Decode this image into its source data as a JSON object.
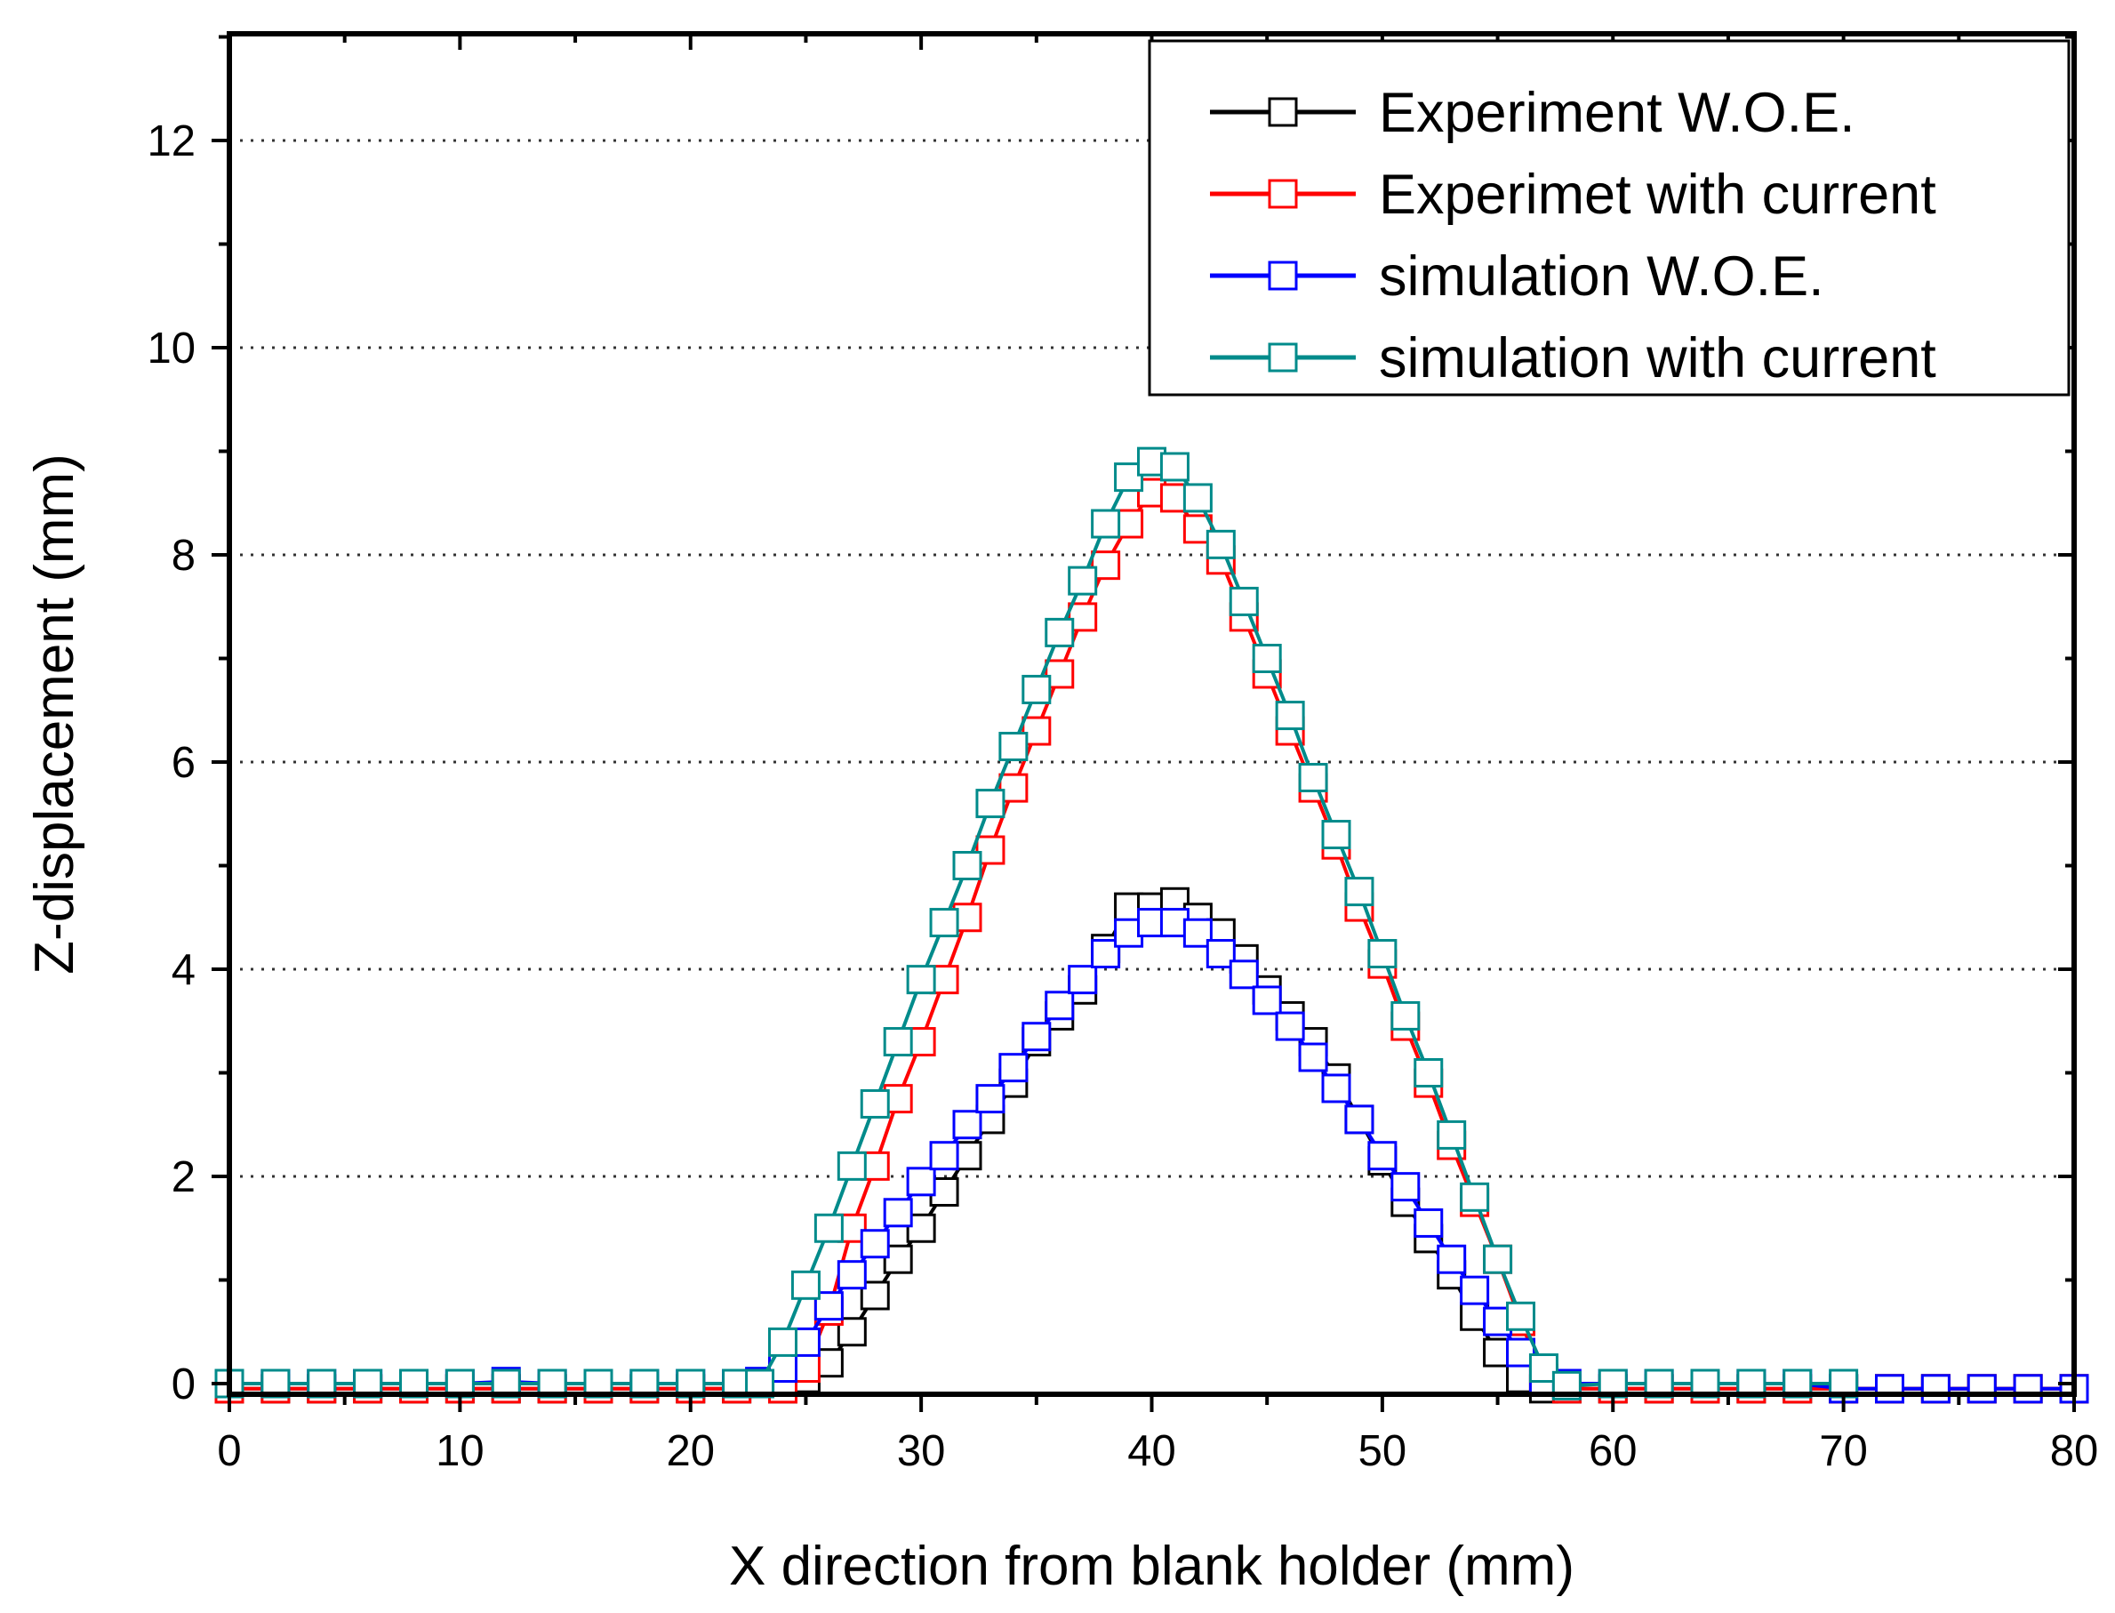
{
  "chart_data": {
    "type": "line",
    "title": "",
    "xlabel": "X direction from blank holder (mm)",
    "ylabel": "Z-displacement (mm)",
    "xlim": [
      0,
      80
    ],
    "ylim": [
      -0.1,
      13
    ],
    "x_ticks": [
      0,
      10,
      20,
      30,
      40,
      50,
      60,
      70,
      80
    ],
    "y_ticks": [
      0,
      2,
      4,
      6,
      8,
      10,
      12
    ],
    "grid": "horizontal dotted",
    "legend_position": "top-right",
    "marker": "open-square",
    "series": [
      {
        "name": "Experiment W.O.E.",
        "color": "#000000",
        "points": [
          [
            0,
            -0.05
          ],
          [
            2,
            -0.05
          ],
          [
            4,
            -0.05
          ],
          [
            6,
            -0.05
          ],
          [
            8,
            -0.05
          ],
          [
            10,
            -0.05
          ],
          [
            12,
            -0.05
          ],
          [
            14,
            -0.05
          ],
          [
            16,
            -0.05
          ],
          [
            18,
            -0.05
          ],
          [
            20,
            -0.05
          ],
          [
            22,
            -0.05
          ],
          [
            24,
            -0.05
          ],
          [
            25,
            0.05
          ],
          [
            26,
            0.2
          ],
          [
            27,
            0.5
          ],
          [
            28,
            0.85
          ],
          [
            29,
            1.2
          ],
          [
            30,
            1.5
          ],
          [
            31,
            1.85
          ],
          [
            32,
            2.2
          ],
          [
            33,
            2.55
          ],
          [
            34,
            2.9
          ],
          [
            35,
            3.3
          ],
          [
            36,
            3.55
          ],
          [
            37,
            3.8
          ],
          [
            38,
            4.2
          ],
          [
            39,
            4.6
          ],
          [
            40,
            4.6
          ],
          [
            41,
            4.65
          ],
          [
            42,
            4.5
          ],
          [
            43,
            4.35
          ],
          [
            44,
            4.1
          ],
          [
            45,
            3.8
          ],
          [
            46,
            3.55
          ],
          [
            47,
            3.3
          ],
          [
            48,
            2.95
          ],
          [
            49,
            2.55
          ],
          [
            50,
            2.15
          ],
          [
            51,
            1.75
          ],
          [
            52,
            1.4
          ],
          [
            53,
            1.05
          ],
          [
            54,
            0.65
          ],
          [
            55,
            0.3
          ],
          [
            56,
            0.05
          ],
          [
            57,
            -0.05
          ],
          [
            58,
            -0.05
          ],
          [
            60,
            -0.05
          ],
          [
            62,
            -0.05
          ],
          [
            64,
            -0.05
          ],
          [
            66,
            -0.05
          ],
          [
            68,
            -0.05
          ],
          [
            70,
            -0.05
          ],
          [
            72,
            -0.05
          ],
          [
            74,
            -0.05
          ],
          [
            76,
            -0.05
          ],
          [
            78,
            -0.05
          ],
          [
            80,
            -0.05
          ]
        ]
      },
      {
        "name": "Experimet with current",
        "color": "#ff0000",
        "points": [
          [
            0,
            -0.05
          ],
          [
            2,
            -0.05
          ],
          [
            4,
            -0.05
          ],
          [
            6,
            -0.05
          ],
          [
            8,
            -0.05
          ],
          [
            10,
            -0.05
          ],
          [
            12,
            -0.05
          ],
          [
            14,
            -0.05
          ],
          [
            16,
            -0.05
          ],
          [
            18,
            -0.05
          ],
          [
            20,
            -0.05
          ],
          [
            22,
            -0.05
          ],
          [
            24,
            -0.05
          ],
          [
            25,
            0.15
          ],
          [
            26,
            0.7
          ],
          [
            27,
            1.5
          ],
          [
            28,
            2.1
          ],
          [
            29,
            2.75
          ],
          [
            30,
            3.3
          ],
          [
            31,
            3.9
          ],
          [
            32,
            4.5
          ],
          [
            33,
            5.15
          ],
          [
            34,
            5.75
          ],
          [
            35,
            6.3
          ],
          [
            36,
            6.85
          ],
          [
            37,
            7.4
          ],
          [
            38,
            7.9
          ],
          [
            39,
            8.3
          ],
          [
            40,
            8.6
          ],
          [
            41,
            8.55
          ],
          [
            42,
            8.25
          ],
          [
            43,
            7.95
          ],
          [
            44,
            7.4
          ],
          [
            45,
            6.85
          ],
          [
            46,
            6.3
          ],
          [
            47,
            5.75
          ],
          [
            48,
            5.2
          ],
          [
            49,
            4.6
          ],
          [
            50,
            4.05
          ],
          [
            51,
            3.45
          ],
          [
            52,
            2.9
          ],
          [
            53,
            2.3
          ],
          [
            54,
            1.75
          ],
          [
            55,
            1.2
          ],
          [
            56,
            0.6
          ],
          [
            57,
            0.05
          ],
          [
            58,
            -0.05
          ],
          [
            60,
            -0.05
          ],
          [
            62,
            -0.05
          ],
          [
            64,
            -0.05
          ],
          [
            66,
            -0.05
          ],
          [
            68,
            -0.05
          ],
          [
            70,
            -0.05
          ],
          [
            72,
            -0.05
          ],
          [
            74,
            -0.05
          ],
          [
            76,
            -0.05
          ],
          [
            78,
            -0.05
          ],
          [
            80,
            -0.05
          ]
        ]
      },
      {
        "name": "simulation W.O.E.",
        "color": "#0000ff",
        "points": [
          [
            0,
            0
          ],
          [
            2,
            0
          ],
          [
            4,
            0
          ],
          [
            6,
            0
          ],
          [
            8,
            0
          ],
          [
            10,
            0
          ],
          [
            12,
            0.02
          ],
          [
            14,
            0
          ],
          [
            16,
            0
          ],
          [
            18,
            0
          ],
          [
            20,
            0
          ],
          [
            22,
            0
          ],
          [
            23,
            0.02
          ],
          [
            24,
            0.15
          ],
          [
            25,
            0.4
          ],
          [
            26,
            0.75
          ],
          [
            27,
            1.05
          ],
          [
            28,
            1.35
          ],
          [
            29,
            1.65
          ],
          [
            30,
            1.95
          ],
          [
            31,
            2.2
          ],
          [
            32,
            2.5
          ],
          [
            33,
            2.75
          ],
          [
            34,
            3.05
          ],
          [
            35,
            3.35
          ],
          [
            36,
            3.65
          ],
          [
            37,
            3.9
          ],
          [
            38,
            4.15
          ],
          [
            39,
            4.35
          ],
          [
            40,
            4.45
          ],
          [
            41,
            4.45
          ],
          [
            42,
            4.35
          ],
          [
            43,
            4.15
          ],
          [
            44,
            3.95
          ],
          [
            45,
            3.7
          ],
          [
            46,
            3.45
          ],
          [
            47,
            3.15
          ],
          [
            48,
            2.85
          ],
          [
            49,
            2.55
          ],
          [
            50,
            2.2
          ],
          [
            51,
            1.9
          ],
          [
            52,
            1.55
          ],
          [
            53,
            1.2
          ],
          [
            54,
            0.9
          ],
          [
            55,
            0.6
          ],
          [
            56,
            0.3
          ],
          [
            57,
            0.02
          ],
          [
            58,
            0
          ],
          [
            60,
            0
          ],
          [
            62,
            0
          ],
          [
            64,
            0
          ],
          [
            66,
            0
          ],
          [
            68,
            0
          ],
          [
            70,
            -0.05
          ],
          [
            72,
            -0.05
          ],
          [
            74,
            -0.05
          ],
          [
            76,
            -0.05
          ],
          [
            78,
            -0.05
          ],
          [
            80,
            -0.05
          ]
        ]
      },
      {
        "name": "simulation with current",
        "color": "#008b8b",
        "points": [
          [
            0,
            0
          ],
          [
            2,
            0
          ],
          [
            4,
            0
          ],
          [
            6,
            0
          ],
          [
            8,
            0
          ],
          [
            10,
            0
          ],
          [
            12,
            0
          ],
          [
            14,
            0
          ],
          [
            16,
            0
          ],
          [
            18,
            0
          ],
          [
            20,
            0
          ],
          [
            22,
            0
          ],
          [
            23,
            0
          ],
          [
            24,
            0.4
          ],
          [
            25,
            0.95
          ],
          [
            26,
            1.5
          ],
          [
            27,
            2.1
          ],
          [
            28,
            2.7
          ],
          [
            29,
            3.3
          ],
          [
            30,
            3.9
          ],
          [
            31,
            4.45
          ],
          [
            32,
            5.0
          ],
          [
            33,
            5.6
          ],
          [
            34,
            6.15
          ],
          [
            35,
            6.7
          ],
          [
            36,
            7.25
          ],
          [
            37,
            7.75
          ],
          [
            38,
            8.3
          ],
          [
            39,
            8.75
          ],
          [
            40,
            8.9
          ],
          [
            41,
            8.85
          ],
          [
            42,
            8.55
          ],
          [
            43,
            8.1
          ],
          [
            44,
            7.55
          ],
          [
            45,
            7.0
          ],
          [
            46,
            6.45
          ],
          [
            47,
            5.85
          ],
          [
            48,
            5.3
          ],
          [
            49,
            4.75
          ],
          [
            50,
            4.15
          ],
          [
            51,
            3.55
          ],
          [
            52,
            3.0
          ],
          [
            53,
            2.4
          ],
          [
            54,
            1.8
          ],
          [
            55,
            1.2
          ],
          [
            56,
            0.65
          ],
          [
            57,
            0.15
          ],
          [
            58,
            -0.02
          ],
          [
            60,
            0
          ],
          [
            62,
            0
          ],
          [
            64,
            0
          ],
          [
            66,
            0
          ],
          [
            68,
            0
          ],
          [
            70,
            0
          ]
        ]
      }
    ]
  }
}
